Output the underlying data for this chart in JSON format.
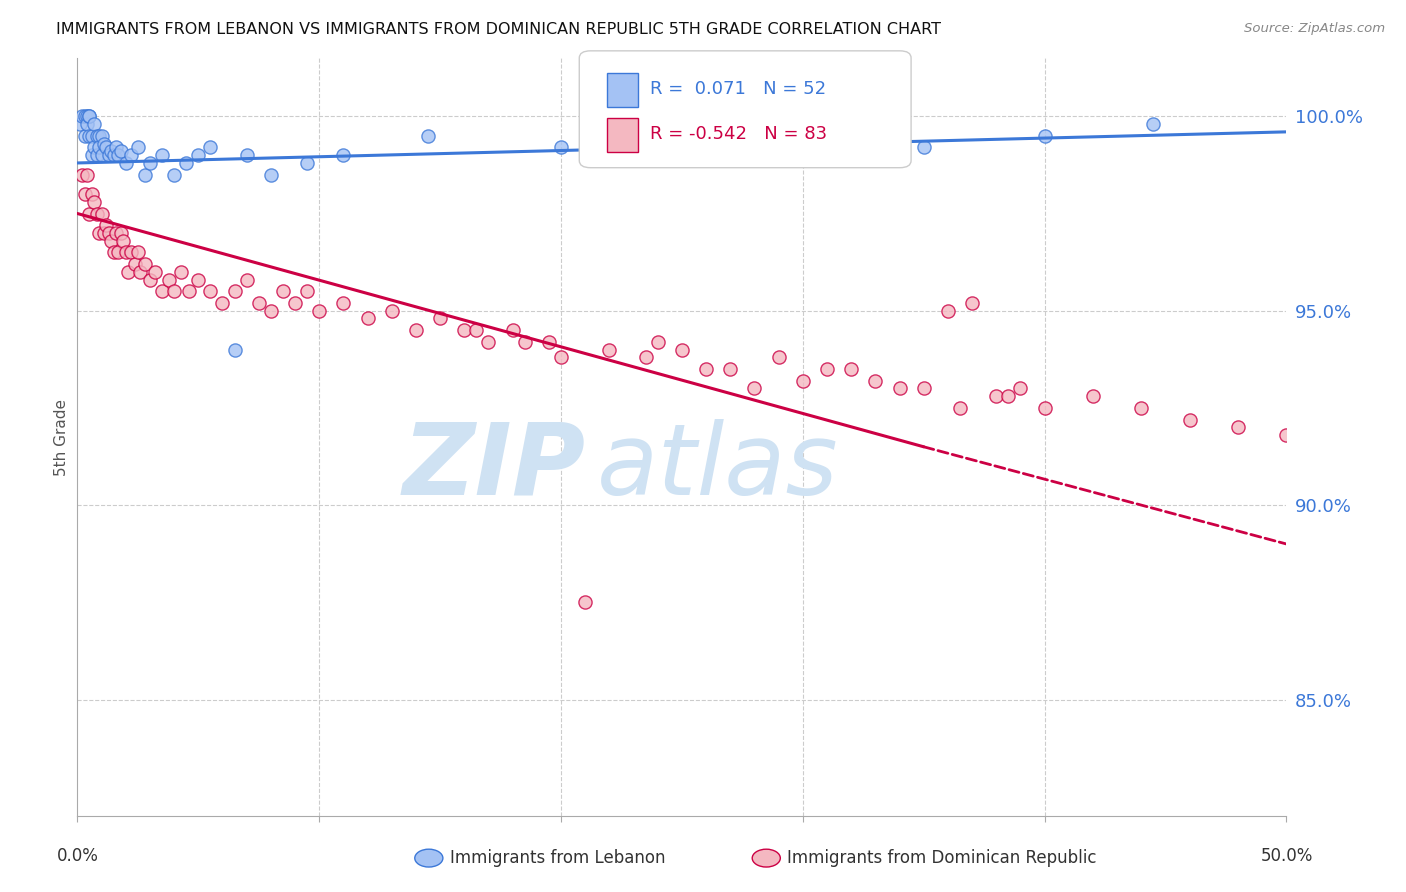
{
  "title": "IMMIGRANTS FROM LEBANON VS IMMIGRANTS FROM DOMINICAN REPUBLIC 5TH GRADE CORRELATION CHART",
  "source": "Source: ZipAtlas.com",
  "ylabel": "5th Grade",
  "y_ticks": [
    85.0,
    90.0,
    95.0,
    100.0
  ],
  "x_lim": [
    0.0,
    50.0
  ],
  "y_lim": [
    82.0,
    101.5
  ],
  "legend_r1": "R =  0.071",
  "legend_n1": "N = 52",
  "legend_r2": "R = -0.542",
  "legend_n2": "N = 83",
  "label1": "Immigrants from Lebanon",
  "label2": "Immigrants from Dominican Republic",
  "color1": "#a4c2f4",
  "color2": "#f4b8c1",
  "line_color1": "#3c78d8",
  "line_color2": "#cc0044",
  "watermark_zip": "ZIP",
  "watermark_atlas": "atlas",
  "watermark_color": "#cfe2f3",
  "tick_color": "#3c78d8",
  "grid_color": "#cccccc",
  "lebanon_x": [
    0.1,
    0.2,
    0.3,
    0.3,
    0.4,
    0.4,
    0.5,
    0.5,
    0.5,
    0.6,
    0.6,
    0.7,
    0.7,
    0.8,
    0.8,
    0.9,
    0.9,
    1.0,
    1.0,
    1.1,
    1.2,
    1.3,
    1.4,
    1.5,
    1.6,
    1.7,
    1.8,
    2.0,
    2.2,
    2.5,
    2.8,
    3.0,
    3.5,
    4.0,
    4.5,
    5.0,
    5.5,
    6.5,
    7.0,
    8.0,
    9.5,
    11.0,
    14.5,
    20.0,
    24.0,
    25.5,
    26.0,
    27.0,
    30.0,
    35.0,
    40.0,
    44.5
  ],
  "lebanon_y": [
    99.8,
    100.0,
    100.0,
    99.5,
    100.0,
    99.8,
    100.0,
    99.5,
    100.0,
    99.0,
    99.5,
    99.2,
    99.8,
    99.5,
    99.0,
    99.5,
    99.2,
    99.0,
    99.5,
    99.3,
    99.2,
    99.0,
    99.1,
    99.0,
    99.2,
    99.0,
    99.1,
    98.8,
    99.0,
    99.2,
    98.5,
    98.8,
    99.0,
    98.5,
    98.8,
    99.0,
    99.2,
    94.0,
    99.0,
    98.5,
    98.8,
    99.0,
    99.5,
    99.2,
    99.3,
    99.5,
    99.0,
    99.5,
    99.3,
    99.2,
    99.5,
    99.8
  ],
  "dominican_x": [
    0.2,
    0.3,
    0.4,
    0.5,
    0.6,
    0.7,
    0.8,
    0.9,
    1.0,
    1.1,
    1.2,
    1.3,
    1.4,
    1.5,
    1.6,
    1.7,
    1.8,
    1.9,
    2.0,
    2.1,
    2.2,
    2.4,
    2.5,
    2.6,
    2.8,
    3.0,
    3.2,
    3.5,
    3.8,
    4.0,
    4.3,
    4.6,
    5.0,
    5.5,
    6.0,
    6.5,
    7.0,
    7.5,
    8.0,
    8.5,
    9.0,
    9.5,
    10.0,
    11.0,
    12.0,
    13.0,
    14.0,
    15.0,
    16.0,
    17.0,
    18.0,
    19.5,
    21.0,
    22.0,
    23.5,
    25.0,
    27.0,
    29.0,
    31.0,
    33.0,
    35.0,
    36.0,
    37.0,
    38.0,
    39.0,
    40.0,
    42.0,
    44.0,
    46.0,
    48.0,
    50.0,
    16.5,
    18.5,
    20.0,
    24.0,
    26.0,
    28.0,
    30.0,
    32.0,
    34.0,
    36.5,
    38.5
  ],
  "dominican_y": [
    98.5,
    98.0,
    98.5,
    97.5,
    98.0,
    97.8,
    97.5,
    97.0,
    97.5,
    97.0,
    97.2,
    97.0,
    96.8,
    96.5,
    97.0,
    96.5,
    97.0,
    96.8,
    96.5,
    96.0,
    96.5,
    96.2,
    96.5,
    96.0,
    96.2,
    95.8,
    96.0,
    95.5,
    95.8,
    95.5,
    96.0,
    95.5,
    95.8,
    95.5,
    95.2,
    95.5,
    95.8,
    95.2,
    95.0,
    95.5,
    95.2,
    95.5,
    95.0,
    95.2,
    94.8,
    95.0,
    94.5,
    94.8,
    94.5,
    94.2,
    94.5,
    94.2,
    87.5,
    94.0,
    93.8,
    94.0,
    93.5,
    93.8,
    93.5,
    93.2,
    93.0,
    95.0,
    95.2,
    92.8,
    93.0,
    92.5,
    92.8,
    92.5,
    92.2,
    92.0,
    91.8,
    94.5,
    94.2,
    93.8,
    94.2,
    93.5,
    93.0,
    93.2,
    93.5,
    93.0,
    92.5,
    92.8
  ],
  "lb_line_x0": 0.0,
  "lb_line_x1": 50.0,
  "lb_line_y0": 98.8,
  "lb_line_y1": 99.6,
  "dr_line_x0": 0.0,
  "dr_line_x1": 35.0,
  "dr_line_y0": 97.5,
  "dr_line_y1": 91.5,
  "dr_dash_x0": 35.0,
  "dr_dash_x1": 50.0,
  "dr_dash_y0": 91.5,
  "dr_dash_y1": 89.0
}
